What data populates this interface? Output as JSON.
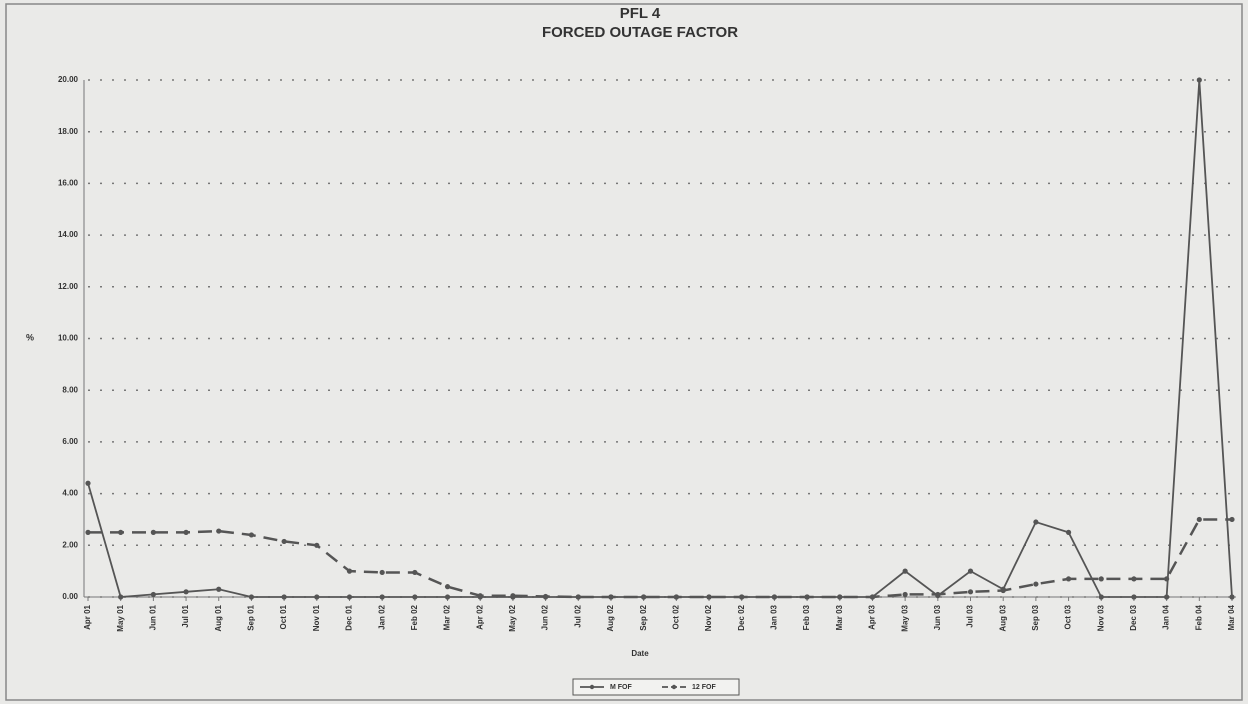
{
  "chart_data": {
    "type": "line",
    "title": "PFL 4",
    "subtitle": "FORCED OUTAGE FACTOR",
    "x_label": "Date",
    "y_label": "%",
    "categories": [
      "Apr 01",
      "May 01",
      "Jun 01",
      "Jul 01",
      "Aug 01",
      "Sep 01",
      "Oct 01",
      "Nov 01",
      "Dec 01",
      "Jan 02",
      "Feb 02",
      "Mar 02",
      "Apr 02",
      "May 02",
      "Jun 02",
      "Jul 02",
      "Aug 02",
      "Sep 02",
      "Oct 02",
      "Nov 02",
      "Dec 02",
      "Jan 03",
      "Feb 03",
      "Mar 03",
      "Apr 03",
      "May 03",
      "Jun 03",
      "Jul 03",
      "Aug 03",
      "Sep 03",
      "Oct 03",
      "Nov 03",
      "Dec 03",
      "Jan 04",
      "Feb 04",
      "Mar 04"
    ],
    "series": [
      {
        "name": "M FOF",
        "color": "#555555",
        "dash": false,
        "values": [
          4.4,
          0,
          0.1,
          0.2,
          0.3,
          0,
          0,
          0,
          0,
          0,
          0,
          0,
          0,
          0,
          0,
          0,
          0,
          0,
          0,
          0,
          0,
          0,
          0,
          0,
          0,
          1.0,
          0.05,
          1.0,
          0.3,
          2.9,
          2.5,
          0,
          0,
          0,
          20,
          0
        ]
      },
      {
        "name": "12 FOF",
        "color": "#555555",
        "dash": true,
        "values": [
          2.5,
          2.5,
          2.5,
          2.5,
          2.55,
          2.4,
          2.15,
          2.0,
          1.0,
          0.95,
          0.95,
          0.4,
          0.05,
          0.05,
          0.02,
          0,
          0,
          0,
          0,
          0,
          0,
          0,
          0,
          0,
          0,
          0.1,
          0.1,
          0.2,
          0.25,
          0.5,
          0.7,
          0.7,
          0.7,
          0.7,
          3.0,
          3.0
        ]
      }
    ],
    "ylim": [
      0,
      20
    ],
    "yticks": [
      {
        "value": 0,
        "label": "0.00"
      },
      {
        "value": 2,
        "label": "2.00"
      },
      {
        "value": 4,
        "label": "4.00"
      },
      {
        "value": 6,
        "label": "6.00"
      },
      {
        "value": 8,
        "label": "8.00"
      },
      {
        "value": 10,
        "label": "10.00"
      },
      {
        "value": 12,
        "label": "12.00"
      },
      {
        "value": 14,
        "label": "14.00"
      },
      {
        "value": 16,
        "label": "16.00"
      },
      {
        "value": 18,
        "label": "18.00"
      },
      {
        "value": 20,
        "label": "20.00"
      }
    ],
    "grid": true,
    "legend": "bottom"
  }
}
